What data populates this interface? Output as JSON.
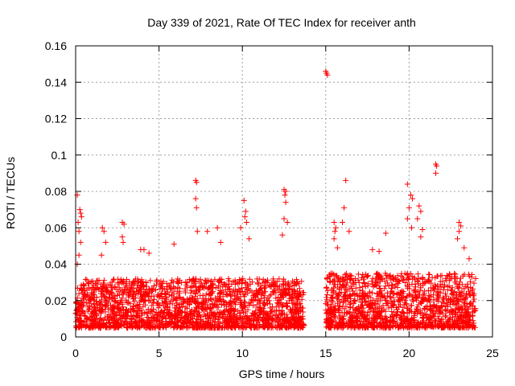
{
  "chart_data": {
    "type": "scatter",
    "title": "Day 339 of 2021, Rate Of TEC Index for receiver anth",
    "xlabel": "GPS time / hours",
    "ylabel": "ROTI / TECUs",
    "xlim": [
      0,
      25
    ],
    "ylim": [
      0,
      0.16
    ],
    "x_ticks": [
      "0",
      "5",
      "10",
      "15",
      "20",
      "25"
    ],
    "x_tick_values": [
      0,
      5,
      10,
      15,
      20,
      25
    ],
    "y_ticks": [
      "0",
      "0.02",
      "0.04",
      "0.06",
      "0.08",
      "0.1",
      "0.12",
      "0.14",
      "0.16"
    ],
    "y_tick_values": [
      0,
      0.02,
      0.04,
      0.06,
      0.08,
      0.1,
      0.12,
      0.14,
      0.16
    ],
    "grid": true,
    "marker": "+",
    "series": [
      {
        "name": "ROTI",
        "color": "#ff0000",
        "points": [
          [
            0.1,
            0.078
          ],
          [
            0.15,
            0.063
          ],
          [
            0.25,
            0.07
          ],
          [
            0.3,
            0.068
          ],
          [
            0.35,
            0.066
          ],
          [
            0.2,
            0.058
          ],
          [
            0.3,
            0.052
          ],
          [
            0.1,
            0.04
          ],
          [
            0.2,
            0.045
          ],
          [
            1.6,
            0.06
          ],
          [
            1.7,
            0.058
          ],
          [
            1.8,
            0.052
          ],
          [
            1.55,
            0.045
          ],
          [
            2.8,
            0.063
          ],
          [
            2.9,
            0.062
          ],
          [
            2.8,
            0.055
          ],
          [
            2.85,
            0.052
          ],
          [
            3.9,
            0.048
          ],
          [
            4.1,
            0.048
          ],
          [
            4.4,
            0.046
          ],
          [
            5.9,
            0.051
          ],
          [
            7.2,
            0.086
          ],
          [
            7.25,
            0.085
          ],
          [
            7.2,
            0.076
          ],
          [
            7.25,
            0.071
          ],
          [
            7.3,
            0.058
          ],
          [
            7.9,
            0.058
          ],
          [
            8.5,
            0.06
          ],
          [
            8.7,
            0.052
          ],
          [
            10.1,
            0.075
          ],
          [
            10.2,
            0.069
          ],
          [
            10.15,
            0.066
          ],
          [
            10.25,
            0.063
          ],
          [
            9.9,
            0.06
          ],
          [
            10.4,
            0.054
          ],
          [
            12.5,
            0.081
          ],
          [
            12.6,
            0.08
          ],
          [
            12.55,
            0.078
          ],
          [
            12.6,
            0.074
          ],
          [
            12.5,
            0.065
          ],
          [
            12.7,
            0.063
          ],
          [
            12.4,
            0.056
          ],
          [
            15.0,
            0.146
          ],
          [
            15.05,
            0.145
          ],
          [
            15.1,
            0.144
          ],
          [
            15.5,
            0.063
          ],
          [
            15.6,
            0.06
          ],
          [
            15.55,
            0.058
          ],
          [
            15.5,
            0.054
          ],
          [
            15.7,
            0.049
          ],
          [
            16.2,
            0.086
          ],
          [
            16.1,
            0.071
          ],
          [
            16.0,
            0.063
          ],
          [
            16.4,
            0.058
          ],
          [
            17.8,
            0.048
          ],
          [
            18.2,
            0.047
          ],
          [
            18.6,
            0.057
          ],
          [
            19.9,
            0.084
          ],
          [
            20.1,
            0.078
          ],
          [
            20.2,
            0.076
          ],
          [
            20.0,
            0.071
          ],
          [
            19.9,
            0.065
          ],
          [
            20.15,
            0.06
          ],
          [
            20.6,
            0.072
          ],
          [
            20.7,
            0.069
          ],
          [
            20.5,
            0.065
          ],
          [
            20.8,
            0.059
          ],
          [
            20.7,
            0.055
          ],
          [
            21.6,
            0.095
          ],
          [
            21.65,
            0.094
          ],
          [
            21.6,
            0.09
          ],
          [
            23.0,
            0.063
          ],
          [
            23.1,
            0.061
          ],
          [
            23.0,
            0.058
          ],
          [
            22.9,
            0.054
          ],
          [
            23.3,
            0.049
          ],
          [
            23.6,
            0.043
          ]
        ],
        "dense_band": [
          {
            "x_start": 0.0,
            "x_end": 13.7,
            "y_min": 0.005,
            "y_max": 0.032
          },
          {
            "x_start": 15.0,
            "x_end": 24.0,
            "y_min": 0.005,
            "y_max": 0.035
          }
        ]
      }
    ]
  }
}
